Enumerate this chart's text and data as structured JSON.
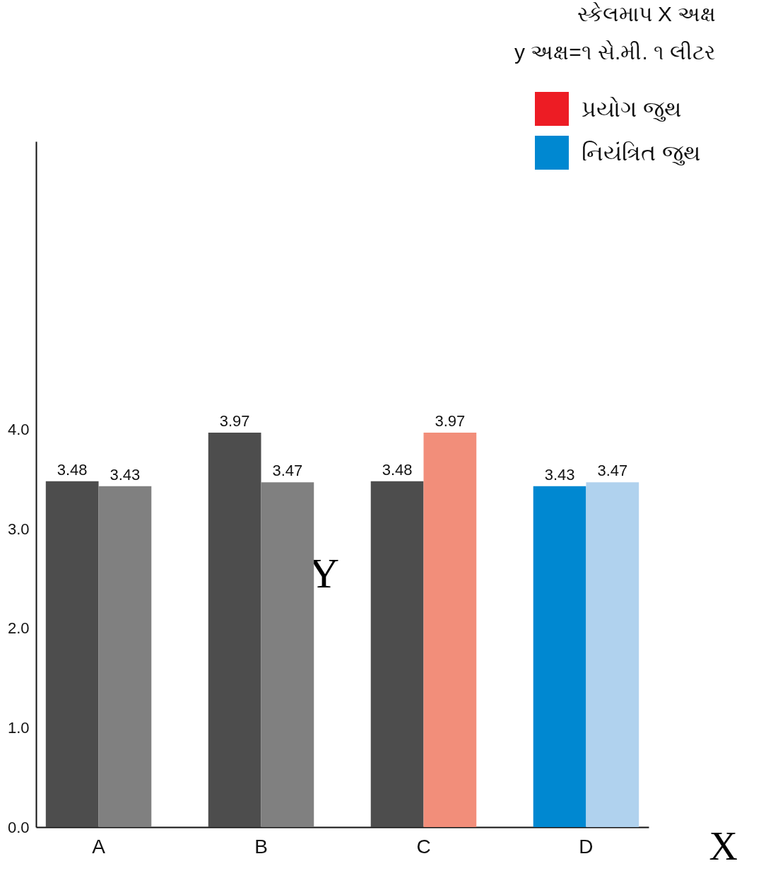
{
  "chart_data": {
    "type": "bar",
    "title": "સ્કેલમાપ X અક્ષ",
    "subtitle": "y અક્ષ=૧ સે.મી. ૧ લીટર",
    "xlabel": "X",
    "ylabel": "Y",
    "categories": [
      "A",
      "B",
      "C",
      "D"
    ],
    "series": [
      {
        "colors": [
          "#4d4d4d",
          "#4d4d4d",
          "#4d4d4d",
          "#0088d1"
        ],
        "values": [
          3.48,
          3.97,
          3.48,
          3.43
        ]
      },
      {
        "colors": [
          "#808080",
          "#808080",
          "#f28e7a",
          "#b0d2ee"
        ],
        "values": [
          3.43,
          3.47,
          3.97,
          3.47
        ]
      }
    ],
    "annotations": [
      "પ્રયોગ જુથ",
      "નિયંત્રિત જુથ"
    ],
    "ylim": [
      0,
      6.9
    ],
    "yticks": [
      {
        "value": 0,
        "label": "0.0"
      },
      {
        "value": 1,
        "label": "1.0"
      },
      {
        "value": 2,
        "label": "2.0"
      },
      {
        "value": 3,
        "label": "3.0"
      },
      {
        "value": 4,
        "label": "4.0"
      }
    ],
    "data_labels": true,
    "grid": false
  }
}
